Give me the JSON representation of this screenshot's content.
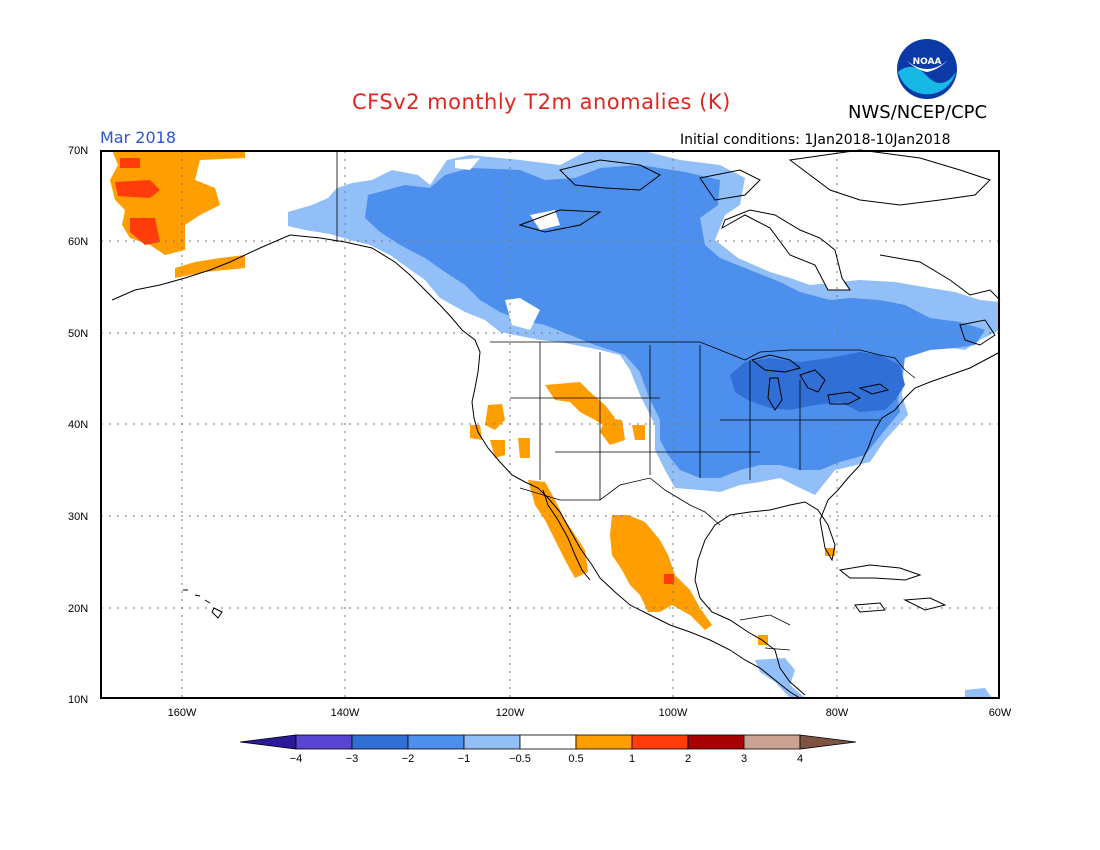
{
  "header": {
    "title": "CFSv2 monthly T2m anomalies (K)",
    "agency": "NWS/NCEP/CPC",
    "logo_text": "NOAA",
    "valid_month": "Mar 2018",
    "initial_conditions": "Initial conditions: 1Jan2018-10Jan2018"
  },
  "axes": {
    "lat_labels": [
      "70N",
      "60N",
      "50N",
      "40N",
      "30N",
      "20N",
      "10N"
    ],
    "lon_labels": [
      "160W",
      "140W",
      "120W",
      "100W",
      "80W",
      "60W"
    ]
  },
  "colorbar": {
    "tick_labels": [
      "−4",
      "−3",
      "−2",
      "−1",
      "−0.5",
      "0.5",
      "1",
      "2",
      "3",
      "4"
    ],
    "colors": [
      "#2a1a9a",
      "#5a44d2",
      "#2f6fd6",
      "#4d8fec",
      "#92bff7",
      "#ffffff",
      "#ff9e00",
      "#ff3c0a",
      "#a80303",
      "#caa392",
      "#7d5341"
    ]
  },
  "map_legend": {
    "cool_strong": "#2f6fd6",
    "cool_moderate": "#4d8fec",
    "cool_weak": "#92bff7",
    "warm_weak": "#ff9e00",
    "warm_moderate": "#ff3c0a"
  }
}
